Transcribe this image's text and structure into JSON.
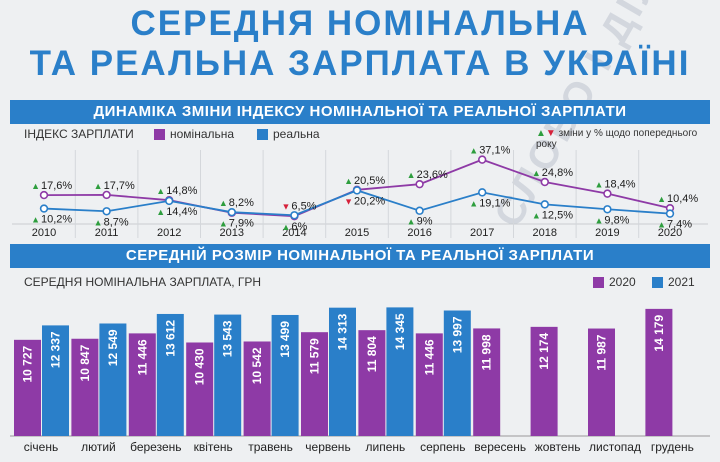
{
  "header": {
    "title_line1": "СЕРЕДНЯ НОМІНАЛЬНА",
    "title_line2": "ТА РЕАЛЬНА ЗАРПЛАТА В УКРАЇНІ",
    "watermark": "СЛОВО І ДІЛО"
  },
  "section1": {
    "band_title": "ДИНАМІКА ЗМІНИ ІНДЕКСУ НОМІНАЛЬНОЇ ТА РЕАЛЬНОЇ ЗАРПЛАТИ",
    "index_label": "ІНДЕКС ЗАРПЛАТИ",
    "legend_nominal": "номінальна",
    "legend_real": "реальна",
    "note": "зміни у % щодо попереднього року"
  },
  "section2": {
    "band_title": "СЕРЕДНІЙ РОЗМІР НОМІНАЛЬНОЇ ТА РЕАЛЬНОЇ ЗАРПЛАТИ",
    "subtitle": "СЕРЕДНЯ НОМІНАЛЬНА ЗАРПЛАТА, ГРН",
    "legend_2020": "2020",
    "legend_2021": "2021"
  },
  "colors": {
    "accent": "#2a7fc9",
    "nominal": "#8e3aa6",
    "real": "#2a7fc9",
    "up": "#2e9e3e",
    "down": "#d6213a"
  },
  "chart_data": [
    {
      "type": "line",
      "x": [
        "2010",
        "2011",
        "2012",
        "2013",
        "2014",
        "2015",
        "2016",
        "2017",
        "2018",
        "2019",
        "2020"
      ],
      "series": [
        {
          "name": "номінальна",
          "values": [
            17.6,
            17.7,
            14.8,
            7.9,
            6,
            20.5,
            23.6,
            37.1,
            24.8,
            18.4,
            10.4
          ],
          "direction": [
            "up",
            "up",
            "up",
            "up",
            "up",
            "up",
            "up",
            "up",
            "up",
            "up",
            "up"
          ]
        },
        {
          "name": "реальна",
          "values": [
            10.2,
            8.7,
            14.4,
            8.2,
            6.5,
            20.2,
            9,
            19.1,
            12.5,
            9.8,
            7.4
          ],
          "direction": [
            "up",
            "up",
            "up",
            "up",
            "down",
            "down",
            "up",
            "up",
            "up",
            "up",
            "up"
          ]
        }
      ],
      "label_suffix": "%"
    },
    {
      "type": "bar",
      "categories": [
        "січень",
        "лютий",
        "березень",
        "квітень",
        "травень",
        "червень",
        "липень",
        "серпень",
        "вересень",
        "жовтень",
        "листопад",
        "грудень"
      ],
      "series": [
        {
          "name": "2020",
          "values": [
            10727,
            10847,
            11446,
            10430,
            10542,
            11579,
            11804,
            11446,
            11998,
            12174,
            11987,
            14179
          ],
          "labels": [
            "10 727",
            "10 847",
            "11 446",
            "10 430",
            "10 542",
            "11 579",
            "11 804",
            "11 446",
            "11 998",
            "12 174",
            "11 987",
            "14 179"
          ]
        },
        {
          "name": "2021",
          "values": [
            12337,
            12549,
            13612,
            13543,
            13499,
            14313,
            14345,
            13997,
            null,
            null,
            null,
            null
          ],
          "labels": [
            "12 337",
            "12 549",
            "13 612",
            "13 543",
            "13 499",
            "14 313",
            "14 345",
            "13 997",
            null,
            null,
            null,
            null
          ]
        }
      ]
    }
  ]
}
